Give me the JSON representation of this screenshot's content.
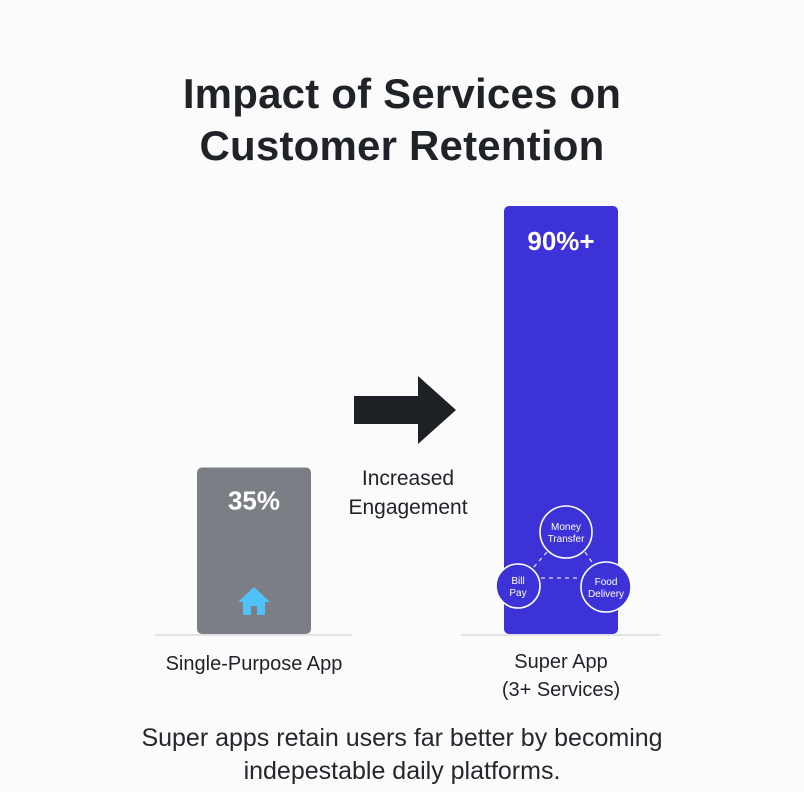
{
  "chart_data": {
    "type": "bar",
    "title_lines": [
      "Impact of Services on",
      "Customer Retention"
    ],
    "categories": [
      {
        "name": "single",
        "label_lines": [
          "Single-Purpose App"
        ]
      },
      {
        "name": "super",
        "label_lines": [
          "Super App",
          "(3+ Services)"
        ]
      }
    ],
    "values": [
      35,
      90
    ],
    "value_labels": [
      "35%",
      "90%+"
    ],
    "ylim": [
      0,
      90
    ],
    "colors": {
      "single": "#7b7f85",
      "super": "#3d31d8",
      "arrow": "#1d2125",
      "home_icon": "#4fc3f7",
      "baseline": "#e1e3e6"
    },
    "arrow_label_lines": [
      "Increased",
      "Engagement"
    ],
    "services": [
      "Money Transfer",
      "Bill Pay",
      "Food Delivery"
    ],
    "service_label_lines": [
      [
        "Money",
        "Transfer"
      ],
      [
        "Bill",
        "Pay"
      ],
      [
        "Food",
        "Delivery"
      ]
    ],
    "icons": {
      "single": "home-icon",
      "arrow": "right-arrow-icon"
    }
  },
  "caption_lines": [
    "Super apps retain users far better by becoming",
    "indepestable daily platforms."
  ]
}
